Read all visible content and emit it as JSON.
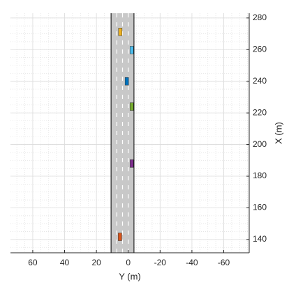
{
  "chart_data": {
    "type": "scenario",
    "xlabel": "Y (m)",
    "ylabel": "X (m)",
    "xlim": [
      74,
      -76
    ],
    "xticks": [
      60,
      40,
      20,
      0,
      -20,
      -40,
      -60
    ],
    "ylim": [
      131.6,
      283
    ],
    "yticks": [
      140,
      160,
      180,
      200,
      220,
      240,
      260,
      280
    ],
    "grid": true,
    "minor_grid": true,
    "road": {
      "edges": [
        10.8,
        -3.6
      ],
      "lane_markings": [
        7.2,
        3.6,
        0
      ]
    },
    "vehicles": [
      {
        "color": "#edb120",
        "x": 271.2,
        "y": 5.0
      },
      {
        "color": "#4dbeee",
        "x": 259.7,
        "y": -2.2
      },
      {
        "color": "#0072bd",
        "x": 240,
        "y": 0.9
      },
      {
        "color": "#77ac30",
        "x": 224,
        "y": -2.2
      },
      {
        "color": "#7e2f8e",
        "x": 188,
        "y": -2.2
      },
      {
        "color": "#d95319",
        "x": 141.7,
        "y": 5.2
      }
    ]
  }
}
